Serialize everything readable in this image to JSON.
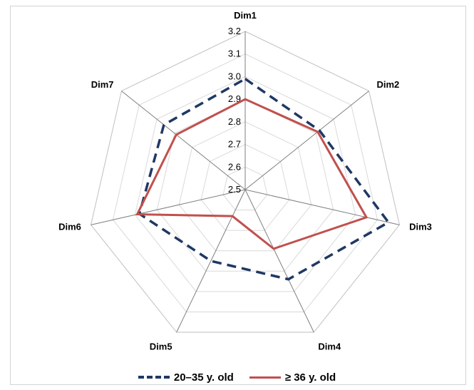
{
  "chart_data": {
    "type": "radar",
    "axes": [
      "Dim1",
      "Dim2",
      "Dim3",
      "Dim4",
      "Dim5",
      "Dim6",
      "Dim7"
    ],
    "ticks": [
      "2.5",
      "2.6",
      "2.7",
      "2.8",
      "2.9",
      "3.0",
      "3.1",
      "3.2"
    ],
    "range": [
      2.5,
      3.2
    ],
    "grid": true,
    "legend_position": "bottom",
    "series": [
      {
        "name": "20–35 y. old",
        "color": "#1f3864",
        "style": "dashed",
        "values": [
          2.99,
          2.92,
          3.15,
          2.94,
          2.85,
          2.98,
          2.96
        ]
      },
      {
        "name": "≥ 36 y. old",
        "color": "#c0504d",
        "style": "solid",
        "values": [
          2.9,
          2.91,
          3.05,
          2.79,
          2.63,
          2.99,
          2.89
        ]
      }
    ]
  }
}
